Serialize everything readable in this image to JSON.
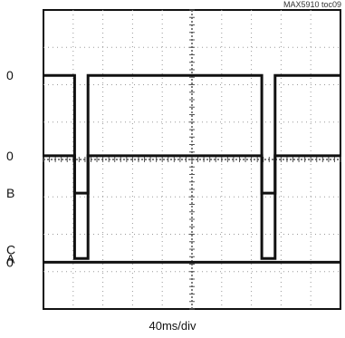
{
  "figure_id": "MAX5910 toc09",
  "x_unit_label": "40ms/div",
  "chart_data": {
    "type": "line",
    "title": "",
    "xlabel": "40ms/div",
    "ylabel": "",
    "grid": true,
    "divisions": {
      "x": 10,
      "y": 8
    },
    "xlim": [
      0,
      400
    ],
    "x_unit": "ms",
    "channels": [
      {
        "name": "A",
        "zero_label": "0",
        "zero_div": 6.25,
        "high_div": 1.35,
        "points": [
          [
            0,
            0
          ],
          [
            42,
            0
          ],
          [
            42,
            1
          ],
          [
            60,
            1
          ],
          [
            60,
            0
          ],
          [
            294,
            0
          ],
          [
            294,
            1
          ],
          [
            312,
            1
          ],
          [
            312,
            0
          ],
          [
            400,
            0
          ]
        ]
      },
      {
        "name": "B",
        "zero_label": "0",
        "zero_div": 4.1,
        "high_div": 3.1,
        "points": [
          [
            0,
            0
          ],
          [
            42,
            0
          ],
          [
            42,
            1
          ],
          [
            60,
            1
          ],
          [
            60,
            0
          ],
          [
            294,
            0
          ],
          [
            294,
            1
          ],
          [
            312,
            1
          ],
          [
            312,
            0
          ],
          [
            400,
            0
          ]
        ]
      },
      {
        "name": "C",
        "zero_label": "0",
        "zero_div": 1.25,
        "high_div": 1.25,
        "points": [
          [
            0,
            0
          ],
          [
            400,
            0
          ]
        ]
      }
    ]
  }
}
